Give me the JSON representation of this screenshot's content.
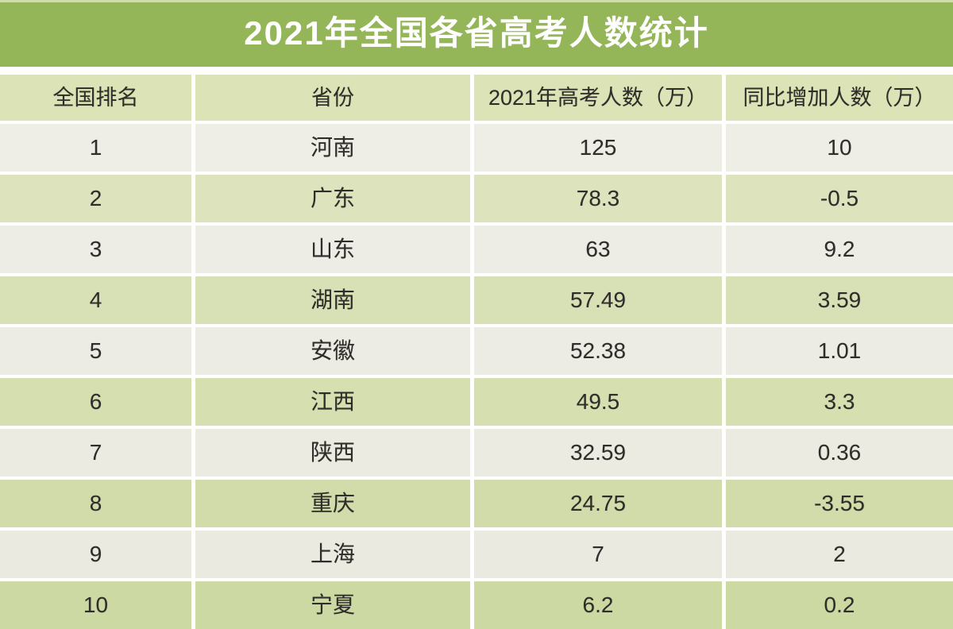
{
  "title_bar": {
    "title": "2021年全国各省高考人数统计"
  },
  "colors": {
    "title_bar_bg": "#94b558",
    "title_text": "#ffffff",
    "header_bg": "#dce3b6",
    "row_light_bg": "#eeede5",
    "row_green_bg": "#d6dfb0",
    "cell_text": "#2e2d29",
    "separator": "#ffffff"
  },
  "chart_data": {
    "type": "table",
    "title": "2021年全国各省高考人数统计",
    "columns": [
      "全国排名",
      "省份",
      "2021年高考人数（万）",
      "同比增加人数（万）"
    ],
    "rows": [
      [
        1,
        "河南",
        125,
        10
      ],
      [
        2,
        "广东",
        78.3,
        -0.5
      ],
      [
        3,
        "山东",
        63,
        9.2
      ],
      [
        4,
        "湖南",
        57.49,
        3.59
      ],
      [
        5,
        "安徽",
        52.38,
        1.01
      ],
      [
        6,
        "江西",
        49.5,
        3.3
      ],
      [
        7,
        "陕西",
        32.59,
        0.36
      ],
      [
        8,
        "重庆",
        24.75,
        -3.55
      ],
      [
        9,
        "上海",
        7,
        2
      ],
      [
        10,
        "宁夏",
        6.2,
        0.2
      ]
    ],
    "layout": {
      "header_position": "top",
      "banding": "alternating light/green rows",
      "grid": "white separators between all cells"
    }
  }
}
